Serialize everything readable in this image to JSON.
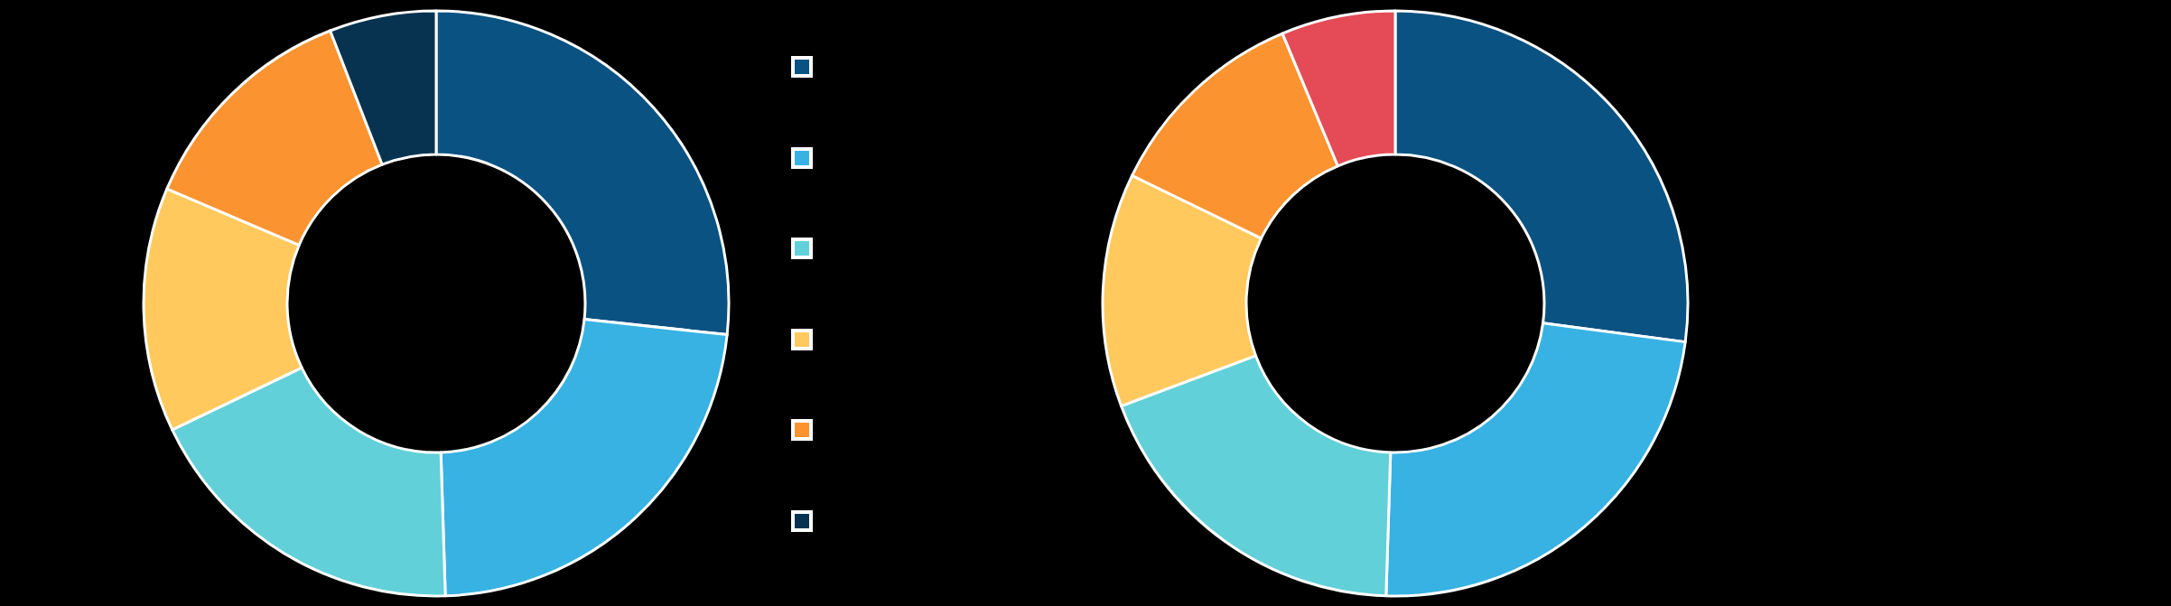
{
  "chart_data": [
    {
      "type": "donut",
      "categories": [
        null,
        null,
        null,
        null,
        null,
        null
      ],
      "values": [
        26.7,
        22.8,
        18.4,
        13.5,
        12.7,
        5.9
      ],
      "colors": [
        "#0a5282",
        "#37b2e3",
        "#62d0d8",
        "#ffc95e",
        "#fb9330",
        "#073350"
      ]
    },
    {
      "type": "donut",
      "categories": [
        null,
        null,
        null,
        null,
        null,
        null
      ],
      "values": [
        27.1,
        23.4,
        18.8,
        12.9,
        11.5,
        6.3
      ],
      "colors": [
        "#0a5282",
        "#37b2e3",
        "#62d0d8",
        "#ffc95e",
        "#fb9330",
        "#e44b57"
      ]
    }
  ]
}
